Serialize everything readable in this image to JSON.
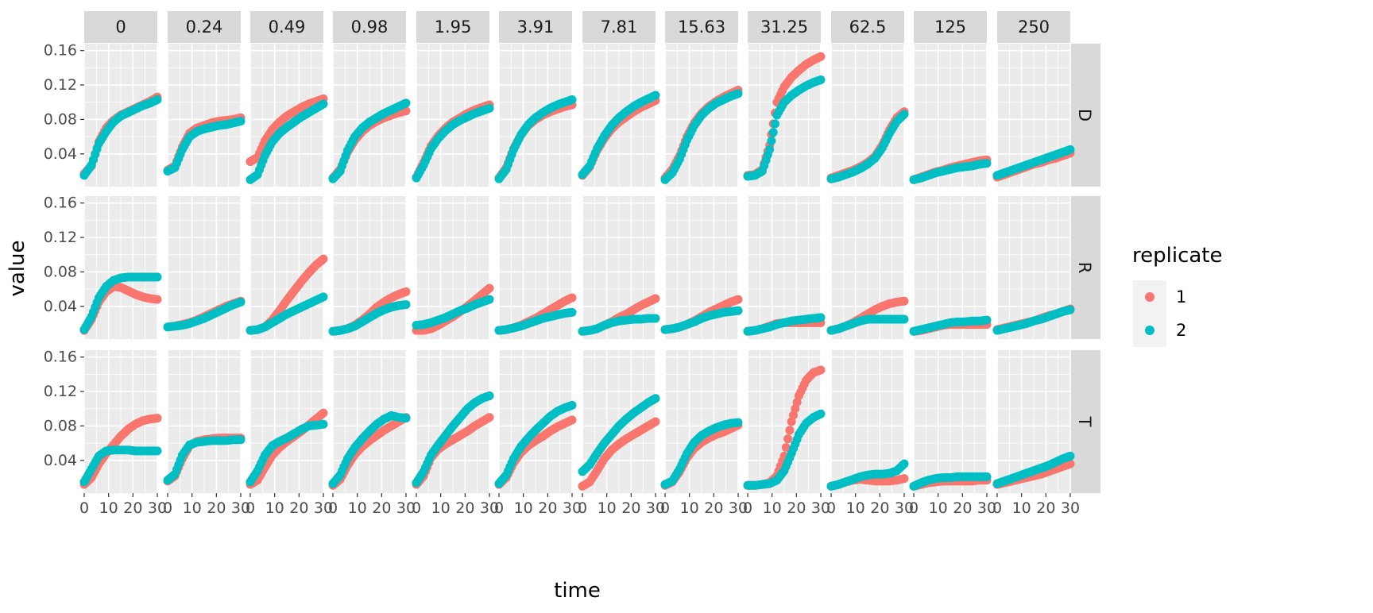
{
  "chart_data": {
    "type": "scatter",
    "xlabel": "time",
    "ylabel": "value",
    "xlim": [
      0,
      30
    ],
    "ylim": [
      0.002,
      0.168
    ],
    "x_ticks": [
      0,
      10,
      20,
      30
    ],
    "x_tick_labels": [
      "0",
      "10",
      "20",
      "30"
    ],
    "y_ticks": [
      0.04,
      0.08,
      0.12,
      0.16
    ],
    "y_tick_labels": [
      "0.04",
      "0.08",
      "0.12",
      "0.16"
    ],
    "grid": true,
    "column_facets": [
      "0",
      "0.24",
      "0.49",
      "0.98",
      "1.95",
      "3.91",
      "7.81",
      "15.63",
      "31.25",
      "62.5",
      "125",
      "250"
    ],
    "row_facets": [
      "D",
      "R",
      "T"
    ],
    "legend": {
      "title": "replicate",
      "position": "right",
      "entries": [
        {
          "label": "1",
          "color": "#F8766D"
        },
        {
          "label": "2",
          "color": "#00BFC4"
        }
      ]
    },
    "x": [
      0,
      3,
      6,
      9,
      12,
      15,
      18,
      21,
      24,
      27,
      30
    ],
    "panels": {
      "D": [
        {
          "r1": [
            0.017,
            0.026,
            0.054,
            0.07,
            0.079,
            0.085,
            0.089,
            0.093,
            0.097,
            0.101,
            0.106
          ],
          "r2": [
            0.015,
            0.027,
            0.052,
            0.066,
            0.077,
            0.084,
            0.088,
            0.092,
            0.096,
            0.099,
            0.103
          ]
        },
        {
          "r1": [
            0.021,
            0.026,
            0.048,
            0.064,
            0.07,
            0.073,
            0.076,
            0.078,
            0.079,
            0.08,
            0.082
          ],
          "r2": [
            0.02,
            0.024,
            0.045,
            0.06,
            0.066,
            0.069,
            0.071,
            0.073,
            0.074,
            0.076,
            0.078
          ]
        },
        {
          "r1": [
            0.031,
            0.036,
            0.055,
            0.068,
            0.077,
            0.084,
            0.089,
            0.094,
            0.098,
            0.101,
            0.104
          ],
          "r2": [
            0.01,
            0.016,
            0.038,
            0.054,
            0.064,
            0.071,
            0.077,
            0.083,
            0.088,
            0.093,
            0.098
          ]
        },
        {
          "r1": [
            0.012,
            0.022,
            0.042,
            0.056,
            0.066,
            0.073,
            0.078,
            0.082,
            0.085,
            0.088,
            0.09
          ],
          "r2": [
            0.011,
            0.02,
            0.044,
            0.06,
            0.07,
            0.077,
            0.082,
            0.087,
            0.091,
            0.095,
            0.099
          ]
        },
        {
          "r1": [
            0.013,
            0.03,
            0.049,
            0.061,
            0.07,
            0.077,
            0.082,
            0.087,
            0.091,
            0.094,
            0.097
          ],
          "r2": [
            0.012,
            0.027,
            0.046,
            0.058,
            0.067,
            0.074,
            0.079,
            0.083,
            0.087,
            0.09,
            0.093
          ]
        },
        {
          "r1": [
            0.012,
            0.024,
            0.046,
            0.062,
            0.073,
            0.08,
            0.085,
            0.089,
            0.092,
            0.095,
            0.097
          ],
          "r2": [
            0.011,
            0.022,
            0.045,
            0.062,
            0.074,
            0.082,
            0.088,
            0.093,
            0.097,
            0.1,
            0.103
          ]
        },
        {
          "r1": [
            0.015,
            0.025,
            0.044,
            0.058,
            0.069,
            0.077,
            0.083,
            0.089,
            0.094,
            0.098,
            0.102
          ],
          "r2": [
            0.016,
            0.026,
            0.046,
            0.061,
            0.073,
            0.082,
            0.089,
            0.095,
            0.1,
            0.104,
            0.108
          ]
        },
        {
          "r1": [
            0.012,
            0.022,
            0.038,
            0.06,
            0.076,
            0.087,
            0.095,
            0.101,
            0.106,
            0.11,
            0.114
          ],
          "r2": [
            0.01,
            0.018,
            0.034,
            0.056,
            0.073,
            0.085,
            0.093,
            0.099,
            0.103,
            0.107,
            0.11
          ]
        },
        {
          "r1": [
            0.015,
            0.016,
            0.022,
            0.05,
            0.1,
            0.118,
            0.129,
            0.137,
            0.144,
            0.149,
            0.153
          ],
          "r2": [
            0.014,
            0.015,
            0.02,
            0.045,
            0.085,
            0.1,
            0.108,
            0.114,
            0.119,
            0.123,
            0.126
          ]
        },
        {
          "r1": [
            0.012,
            0.015,
            0.018,
            0.021,
            0.025,
            0.03,
            0.037,
            0.05,
            0.068,
            0.082,
            0.089
          ],
          "r2": [
            0.011,
            0.013,
            0.016,
            0.019,
            0.023,
            0.028,
            0.035,
            0.047,
            0.064,
            0.078,
            0.086
          ]
        },
        {
          "r1": [
            0.01,
            0.013,
            0.016,
            0.019,
            0.021,
            0.024,
            0.026,
            0.028,
            0.03,
            0.032,
            0.033
          ],
          "r2": [
            0.01,
            0.012,
            0.015,
            0.018,
            0.02,
            0.022,
            0.024,
            0.025,
            0.026,
            0.028,
            0.029
          ]
        },
        {
          "r1": [
            0.013,
            0.016,
            0.019,
            0.022,
            0.025,
            0.028,
            0.03,
            0.033,
            0.035,
            0.038,
            0.041
          ],
          "r2": [
            0.015,
            0.018,
            0.021,
            0.024,
            0.027,
            0.03,
            0.033,
            0.036,
            0.039,
            0.042,
            0.045
          ]
        }
      ],
      "R": [
        {
          "r1": [
            0.012,
            0.025,
            0.045,
            0.057,
            0.063,
            0.062,
            0.058,
            0.054,
            0.051,
            0.049,
            0.048
          ],
          "r2": [
            0.013,
            0.028,
            0.05,
            0.063,
            0.07,
            0.073,
            0.074,
            0.074,
            0.074,
            0.074,
            0.074
          ]
        },
        {
          "r1": [
            0.016,
            0.017,
            0.019,
            0.021,
            0.024,
            0.028,
            0.032,
            0.036,
            0.04,
            0.043,
            0.046
          ],
          "r2": [
            0.016,
            0.017,
            0.018,
            0.02,
            0.023,
            0.026,
            0.03,
            0.034,
            0.038,
            0.042,
            0.045
          ]
        },
        {
          "r1": [
            0.012,
            0.013,
            0.016,
            0.024,
            0.035,
            0.047,
            0.058,
            0.069,
            0.079,
            0.088,
            0.095
          ],
          "r2": [
            0.012,
            0.013,
            0.016,
            0.021,
            0.026,
            0.031,
            0.035,
            0.039,
            0.043,
            0.047,
            0.051
          ]
        },
        {
          "r1": [
            0.011,
            0.012,
            0.014,
            0.018,
            0.024,
            0.031,
            0.039,
            0.045,
            0.05,
            0.054,
            0.057
          ],
          "r2": [
            0.011,
            0.012,
            0.014,
            0.017,
            0.022,
            0.027,
            0.032,
            0.036,
            0.039,
            0.041,
            0.042
          ]
        },
        {
          "r1": [
            0.012,
            0.012,
            0.014,
            0.018,
            0.023,
            0.028,
            0.034,
            0.04,
            0.047,
            0.054,
            0.061
          ],
          "r2": [
            0.018,
            0.019,
            0.021,
            0.024,
            0.027,
            0.031,
            0.035,
            0.038,
            0.042,
            0.045,
            0.048
          ]
        },
        {
          "r1": [
            0.012,
            0.013,
            0.015,
            0.018,
            0.022,
            0.026,
            0.031,
            0.036,
            0.041,
            0.046,
            0.05
          ],
          "r2": [
            0.012,
            0.013,
            0.015,
            0.017,
            0.02,
            0.023,
            0.026,
            0.028,
            0.03,
            0.032,
            0.033
          ]
        },
        {
          "r1": [
            0.011,
            0.012,
            0.014,
            0.018,
            0.022,
            0.027,
            0.031,
            0.036,
            0.041,
            0.045,
            0.049
          ],
          "r2": [
            0.011,
            0.012,
            0.014,
            0.018,
            0.021,
            0.023,
            0.024,
            0.025,
            0.025,
            0.026,
            0.026
          ]
        },
        {
          "r1": [
            0.013,
            0.014,
            0.016,
            0.019,
            0.023,
            0.028,
            0.033,
            0.037,
            0.041,
            0.045,
            0.048
          ],
          "r2": [
            0.013,
            0.014,
            0.016,
            0.019,
            0.022,
            0.026,
            0.029,
            0.031,
            0.033,
            0.034,
            0.035
          ]
        },
        {
          "r1": [
            0.011,
            0.012,
            0.014,
            0.017,
            0.02,
            0.021,
            0.021,
            0.021,
            0.021,
            0.021,
            0.021
          ],
          "r2": [
            0.011,
            0.012,
            0.014,
            0.016,
            0.019,
            0.021,
            0.023,
            0.024,
            0.025,
            0.026,
            0.027
          ]
        },
        {
          "r1": [
            0.012,
            0.014,
            0.017,
            0.021,
            0.026,
            0.031,
            0.036,
            0.04,
            0.043,
            0.045,
            0.046
          ],
          "r2": [
            0.012,
            0.014,
            0.017,
            0.02,
            0.023,
            0.025,
            0.025,
            0.025,
            0.025,
            0.025,
            0.025
          ]
        },
        {
          "r1": [
            0.011,
            0.012,
            0.014,
            0.016,
            0.018,
            0.019,
            0.019,
            0.019,
            0.019,
            0.019,
            0.019
          ],
          "r2": [
            0.011,
            0.013,
            0.015,
            0.017,
            0.019,
            0.021,
            0.022,
            0.022,
            0.023,
            0.023,
            0.024
          ]
        },
        {
          "r1": [
            0.013,
            0.015,
            0.017,
            0.019,
            0.021,
            0.023,
            0.026,
            0.029,
            0.031,
            0.034,
            0.037
          ],
          "r2": [
            0.012,
            0.014,
            0.016,
            0.018,
            0.02,
            0.023,
            0.025,
            0.028,
            0.031,
            0.034,
            0.036
          ]
        }
      ],
      "T": [
        {
          "r1": [
            0.012,
            0.02,
            0.036,
            0.048,
            0.058,
            0.068,
            0.076,
            0.082,
            0.086,
            0.088,
            0.089
          ],
          "r2": [
            0.015,
            0.03,
            0.045,
            0.051,
            0.052,
            0.052,
            0.052,
            0.051,
            0.051,
            0.051,
            0.051
          ]
        },
        {
          "r1": [
            0.016,
            0.022,
            0.042,
            0.057,
            0.062,
            0.064,
            0.065,
            0.066,
            0.066,
            0.066,
            0.066
          ],
          "r2": [
            0.017,
            0.024,
            0.046,
            0.058,
            0.061,
            0.062,
            0.063,
            0.063,
            0.063,
            0.064,
            0.064
          ]
        },
        {
          "r1": [
            0.012,
            0.017,
            0.032,
            0.046,
            0.055,
            0.062,
            0.068,
            0.074,
            0.081,
            0.088,
            0.095
          ],
          "r2": [
            0.015,
            0.028,
            0.046,
            0.057,
            0.062,
            0.066,
            0.071,
            0.076,
            0.08,
            0.081,
            0.082
          ]
        },
        {
          "r1": [
            0.011,
            0.018,
            0.034,
            0.047,
            0.056,
            0.063,
            0.069,
            0.075,
            0.08,
            0.085,
            0.09
          ],
          "r2": [
            0.013,
            0.023,
            0.042,
            0.055,
            0.065,
            0.074,
            0.082,
            0.088,
            0.092,
            0.09,
            0.089
          ]
        },
        {
          "r1": [
            0.012,
            0.022,
            0.043,
            0.053,
            0.059,
            0.064,
            0.069,
            0.074,
            0.08,
            0.085,
            0.09
          ],
          "r2": [
            0.014,
            0.027,
            0.046,
            0.058,
            0.069,
            0.08,
            0.09,
            0.1,
            0.107,
            0.112,
            0.115
          ]
        },
        {
          "r1": [
            0.012,
            0.02,
            0.037,
            0.049,
            0.057,
            0.063,
            0.068,
            0.074,
            0.079,
            0.083,
            0.087
          ],
          "r2": [
            0.013,
            0.023,
            0.042,
            0.056,
            0.066,
            0.075,
            0.083,
            0.091,
            0.097,
            0.101,
            0.104
          ]
        },
        {
          "r1": [
            0.01,
            0.015,
            0.028,
            0.042,
            0.052,
            0.059,
            0.065,
            0.07,
            0.075,
            0.08,
            0.085
          ],
          "r2": [
            0.027,
            0.035,
            0.048,
            0.06,
            0.07,
            0.08,
            0.088,
            0.095,
            0.101,
            0.107,
            0.112
          ]
        },
        {
          "r1": [
            0.011,
            0.015,
            0.027,
            0.043,
            0.054,
            0.061,
            0.066,
            0.07,
            0.073,
            0.077,
            0.081
          ],
          "r2": [
            0.012,
            0.016,
            0.03,
            0.048,
            0.061,
            0.069,
            0.074,
            0.078,
            0.081,
            0.083,
            0.084
          ]
        },
        {
          "r1": [
            0.011,
            0.011,
            0.012,
            0.014,
            0.022,
            0.045,
            0.085,
            0.115,
            0.133,
            0.142,
            0.145
          ],
          "r2": [
            0.011,
            0.011,
            0.012,
            0.013,
            0.017,
            0.028,
            0.048,
            0.07,
            0.083,
            0.09,
            0.094
          ]
        },
        {
          "r1": [
            0.01,
            0.012,
            0.015,
            0.017,
            0.018,
            0.017,
            0.016,
            0.016,
            0.016,
            0.017,
            0.019
          ],
          "r2": [
            0.01,
            0.012,
            0.015,
            0.018,
            0.021,
            0.023,
            0.024,
            0.024,
            0.025,
            0.028,
            0.036
          ]
        },
        {
          "r1": [
            0.01,
            0.012,
            0.014,
            0.015,
            0.016,
            0.016,
            0.016,
            0.016,
            0.016,
            0.017,
            0.017
          ],
          "r2": [
            0.01,
            0.014,
            0.017,
            0.019,
            0.02,
            0.02,
            0.021,
            0.021,
            0.021,
            0.021,
            0.021
          ]
        },
        {
          "r1": [
            0.012,
            0.014,
            0.016,
            0.018,
            0.02,
            0.022,
            0.024,
            0.027,
            0.03,
            0.033,
            0.036
          ],
          "r2": [
            0.013,
            0.016,
            0.019,
            0.022,
            0.025,
            0.028,
            0.031,
            0.034,
            0.038,
            0.042,
            0.045
          ]
        }
      ]
    }
  }
}
